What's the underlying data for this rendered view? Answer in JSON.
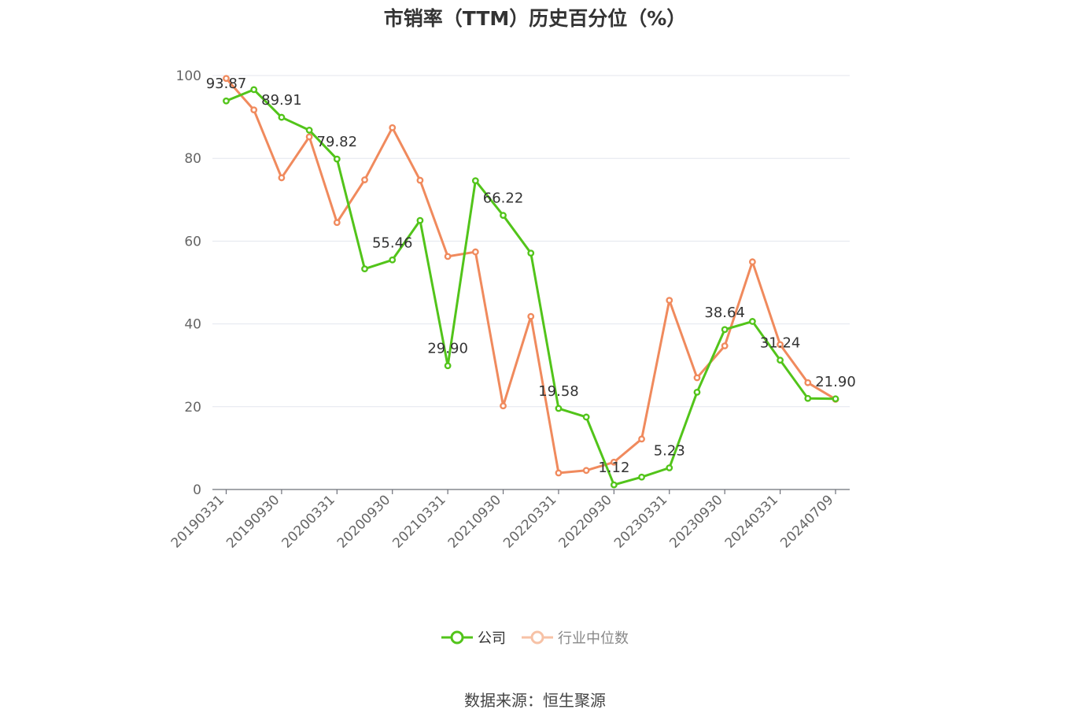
{
  "chart_data": {
    "type": "line",
    "title": "市销率（TTM）历史百分位（%）",
    "ylim": [
      0,
      100
    ],
    "yticks": [
      0,
      20,
      40,
      60,
      80,
      100
    ],
    "grid": true,
    "legend_position": "bottom",
    "x": [
      "20190331",
      "20190630",
      "20190930",
      "20191231",
      "20200331",
      "20200630",
      "20200930",
      "20201231",
      "20210331",
      "20210630",
      "20210930",
      "20211231",
      "20220331",
      "20220630",
      "20220930",
      "20221231",
      "20230331",
      "20230630",
      "20230930",
      "20231231",
      "20240331",
      "20240630",
      "20240709"
    ],
    "x_tick_labels": [
      "20190331",
      "20190930",
      "20200331",
      "20200930",
      "20210331",
      "20210930",
      "20220331",
      "20220930",
      "20230331",
      "20230930",
      "20240331",
      "20240709"
    ],
    "series": [
      {
        "name": "公司",
        "color": "#52c41a",
        "values": [
          93.87,
          96.6,
          89.91,
          86.8,
          79.82,
          53.3,
          55.46,
          65.0,
          29.9,
          74.6,
          66.22,
          57.1,
          19.58,
          17.5,
          1.12,
          3.0,
          5.23,
          23.5,
          38.64,
          40.6,
          31.24,
          22.0,
          21.9
        ],
        "data_labels": {
          "0": "93.87",
          "2": "89.91",
          "4": "79.82",
          "6": "55.46",
          "8": "29.90",
          "10": "66.22",
          "12": "19.58",
          "14": "1.12",
          "16": "5.23",
          "18": "38.64",
          "20": "31.24",
          "22": "21.90"
        }
      },
      {
        "name": "行业中位数",
        "color": "#f08a5d",
        "values": [
          99.3,
          91.7,
          75.3,
          85.2,
          64.5,
          74.8,
          87.4,
          74.7,
          56.3,
          57.4,
          20.2,
          41.8,
          4.0,
          4.6,
          6.6,
          12.2,
          45.7,
          27.0,
          34.7,
          55.0,
          35.0,
          25.8,
          21.8
        ]
      }
    ]
  },
  "legend": {
    "company": "公司",
    "industry": "行业中位数"
  },
  "source": "数据来源：恒生聚源"
}
